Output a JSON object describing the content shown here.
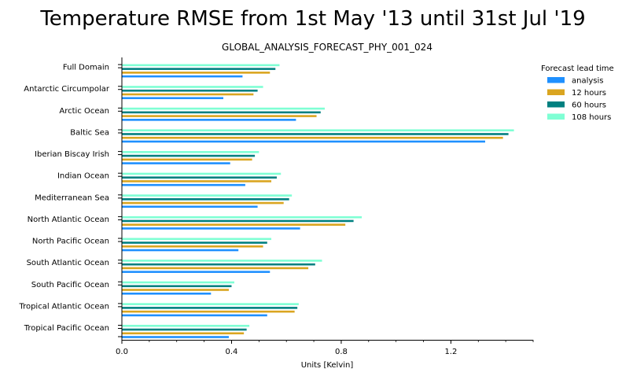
{
  "chart_data": {
    "type": "bar",
    "orientation": "horizontal",
    "title": "Temperature RMSE from 1st May '13 until 31st Jul '19",
    "subtitle": "GLOBAL_ANALYSIS_FORECAST_PHY_001_024",
    "xlabel": "Units [Kelvin]",
    "ylabel": "",
    "xlim": [
      0,
      1.5
    ],
    "xticks": [
      "0.0",
      "0.4",
      "0.8",
      "1.2"
    ],
    "xtick_values": [
      0.0,
      0.4,
      0.8,
      1.2
    ],
    "grid": false,
    "legend": {
      "title": "Forecast lead time",
      "placement": "top-right, outside plot"
    },
    "categories": [
      "Full Domain",
      "Antarctic Circumpolar",
      "Arctic Ocean",
      "Baltic Sea",
      "Iberian Biscay Irish",
      "Indian Ocean",
      "Mediterranean Sea",
      "North Atlantic Ocean",
      "North Pacific Ocean",
      "South Atlantic Ocean",
      "South Pacific Ocean",
      "Tropical Atlantic Ocean",
      "Tropical Pacific Ocean"
    ],
    "series": [
      {
        "name": "analysis",
        "color": "#1f90ff",
        "values": [
          0.44,
          0.37,
          0.635,
          1.325,
          0.395,
          0.45,
          0.495,
          0.65,
          0.425,
          0.54,
          0.325,
          0.53,
          0.39
        ]
      },
      {
        "name": "12 hours",
        "color": "#daa520",
        "values": [
          0.54,
          0.48,
          0.71,
          1.39,
          0.475,
          0.545,
          0.59,
          0.815,
          0.515,
          0.68,
          0.39,
          0.63,
          0.445
        ]
      },
      {
        "name": "60 hours",
        "color": "#008080",
        "values": [
          0.56,
          0.495,
          0.725,
          1.41,
          0.485,
          0.565,
          0.61,
          0.845,
          0.53,
          0.705,
          0.4,
          0.64,
          0.455
        ]
      },
      {
        "name": "108 hours",
        "color": "#7fffd4",
        "values": [
          0.575,
          0.515,
          0.74,
          1.43,
          0.5,
          0.58,
          0.62,
          0.875,
          0.545,
          0.73,
          0.41,
          0.645,
          0.465
        ]
      }
    ]
  }
}
